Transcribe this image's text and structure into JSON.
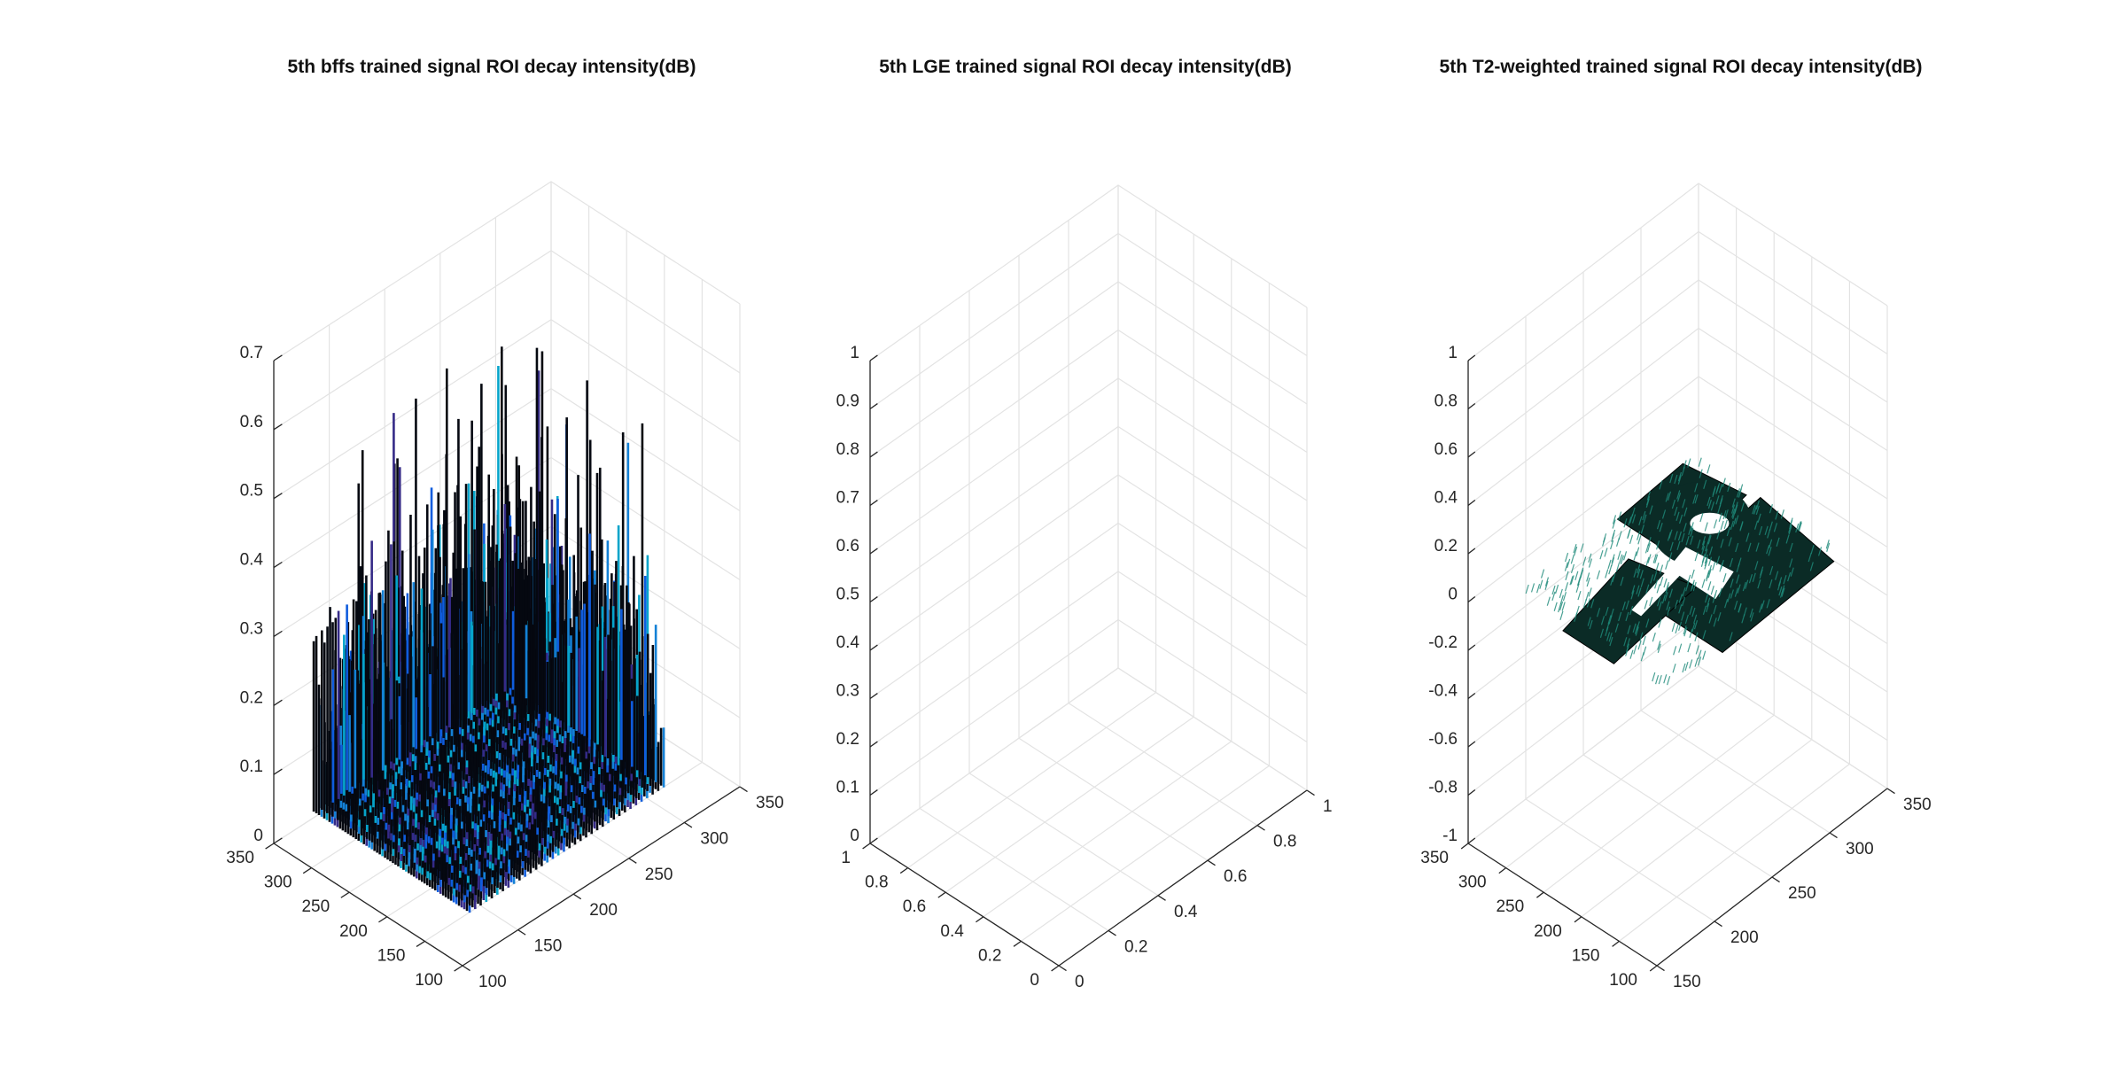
{
  "chart_data": [
    {
      "type": "surface",
      "title": "5th bffs trained signal ROI decay intensity(dB)",
      "xlabel": "",
      "ylabel": "",
      "zlabel": "",
      "xlim": [
        100,
        350
      ],
      "ylim": [
        100,
        350
      ],
      "zlim": [
        0,
        0.7
      ],
      "x_ticks": [
        "100",
        "150",
        "200",
        "250",
        "300",
        "350"
      ],
      "y_ticks": [
        "100",
        "150",
        "200",
        "250",
        "300",
        "350"
      ],
      "z_ticks": [
        "0",
        "0.1",
        "0.2",
        "0.3",
        "0.4",
        "0.5",
        "0.6",
        "0.7"
      ],
      "grid": true,
      "colormap": "parula",
      "edge_color": "#000000",
      "surface_region": {
        "x_range": [
          120,
          330
        ],
        "y_range": [
          120,
          300
        ]
      },
      "peak_value_approx": 0.56,
      "typical_values_approx": [
        0.1,
        0.4
      ]
    },
    {
      "type": "surface",
      "title": "5th LGE trained signal ROI decay intensity(dB)",
      "xlabel": "",
      "ylabel": "",
      "zlabel": "",
      "xlim": [
        0,
        1
      ],
      "ylim": [
        0,
        1
      ],
      "zlim": [
        0,
        1
      ],
      "x_ticks": [
        "0",
        "0.2",
        "0.4",
        "0.6",
        "0.8",
        "1"
      ],
      "y_ticks": [
        "0",
        "0.2",
        "0.4",
        "0.6",
        "0.8",
        "1"
      ],
      "z_ticks": [
        "0",
        "0.1",
        "0.2",
        "0.3",
        "0.4",
        "0.5",
        "0.6",
        "0.7",
        "0.8",
        "0.9",
        "1"
      ],
      "grid": true,
      "empty": true
    },
    {
      "type": "surface",
      "title": "5th T2-weighted trained signal ROI decay intensity(dB)",
      "xlabel": "",
      "ylabel": "",
      "zlabel": "",
      "xlim": [
        100,
        350
      ],
      "ylim": [
        150,
        350
      ],
      "zlim": [
        -1,
        1
      ],
      "x_ticks": [
        "100",
        "150",
        "200",
        "250",
        "300",
        "350"
      ],
      "y_ticks": [
        "150",
        "200",
        "250",
        "300",
        "350"
      ],
      "z_ticks": [
        "-1",
        "-0.8",
        "-0.6",
        "-0.4",
        "-0.2",
        "0",
        "0.2",
        "0.4",
        "0.6",
        "0.8",
        "1"
      ],
      "grid": true,
      "colormap": "parula",
      "edge_color": "#000000",
      "surface_value": 0,
      "note_regions": [
        "flat surface at z = 0 with holes (NaN) forming an irregular mask"
      ]
    }
  ]
}
